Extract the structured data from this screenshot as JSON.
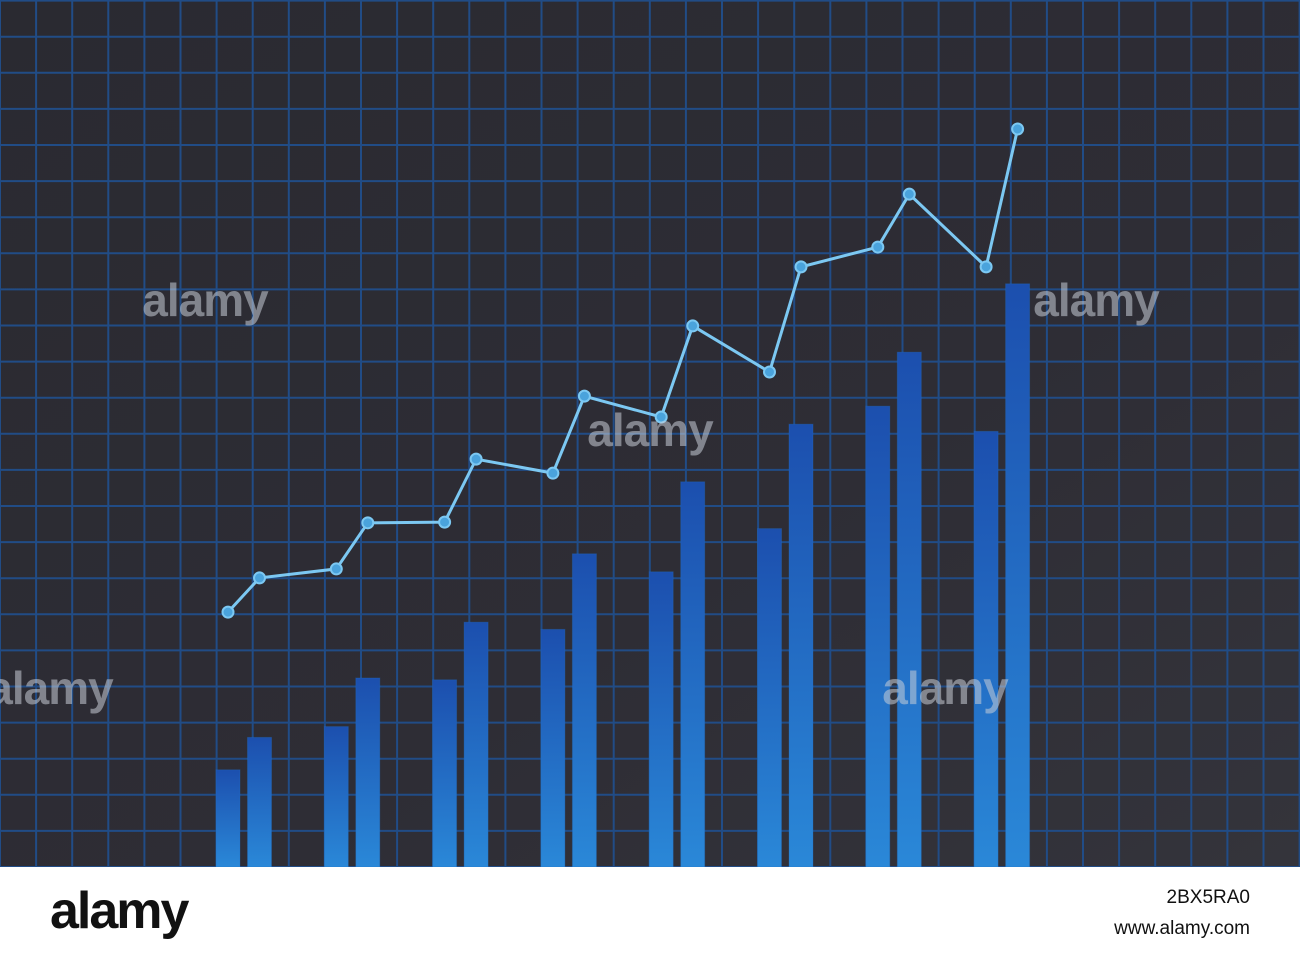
{
  "chart_data": {
    "type": "combo",
    "categories": [
      null,
      null,
      null,
      null,
      null,
      null,
      null,
      null,
      null,
      null,
      null,
      null,
      null,
      null,
      null,
      null
    ],
    "series": [
      {
        "type": "bar",
        "color": "#2170c8",
        "values": [
          2.7,
          3.6,
          3.9,
          5.25,
          5.2,
          6.8,
          6.6,
          8.7,
          8.2,
          10.7,
          9.4,
          12.3,
          12.8,
          14.3,
          12.1,
          16.2
        ]
      },
      {
        "type": "line",
        "color": "#7cc8f2",
        "values": [
          7.08,
          8.03,
          8.28,
          9.56,
          9.58,
          11.33,
          10.94,
          13.08,
          12.5,
          15.03,
          13.75,
          16.67,
          17.22,
          18.69,
          16.67,
          20.5
        ]
      }
    ],
    "ylim": [
      0,
      24
    ]
  },
  "watermark": "alamy",
  "image_id": "2BX5RA0",
  "site": "www.alamy.com"
}
